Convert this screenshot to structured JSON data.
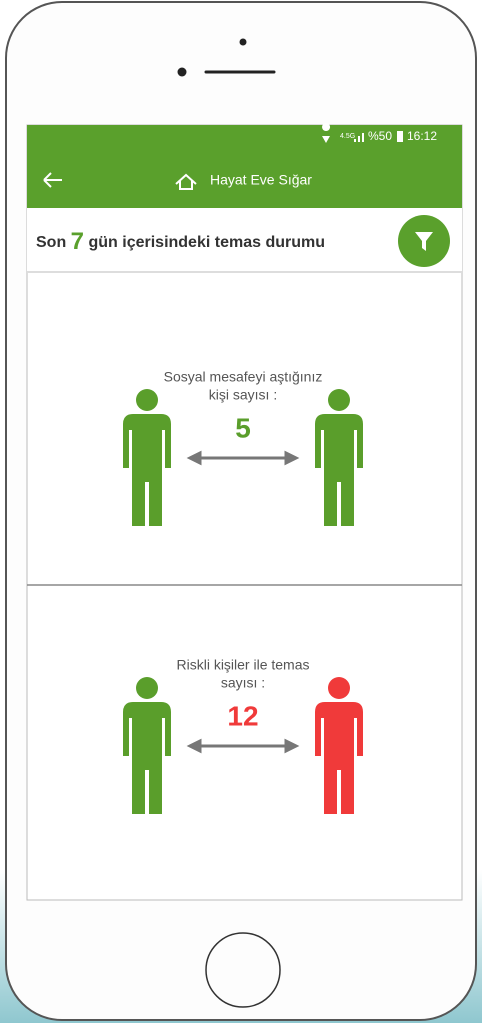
{
  "status_bar": {
    "network": "4.5G",
    "battery": "%50",
    "time": "16:12"
  },
  "app_bar": {
    "title": "Hayat Eve Sığar"
  },
  "header": {
    "prefix": "Son",
    "days": "7",
    "suffix": "gün içerisindeki temas durumu"
  },
  "sections": [
    {
      "label": [
        "Sosyal mesafeyi aştığınız",
        "kişi sayısı :"
      ],
      "value": "5"
    },
    {
      "label": [
        "Riskli kişiler ile temas",
        "sayısı :"
      ],
      "value": "12"
    }
  ]
}
